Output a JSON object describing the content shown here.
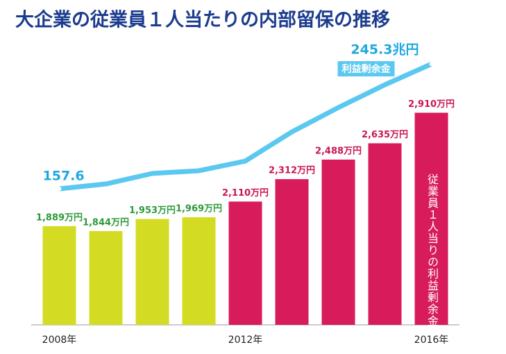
{
  "chart_data": {
    "type": "bar-line",
    "title": "大企業の従業員１人当たりの内部留保の推移",
    "categories": [
      "2008年",
      null,
      null,
      null,
      "2012年",
      null,
      null,
      null,
      "2016年"
    ],
    "ylim": [
      1000,
      3550
    ],
    "y2lim": [
      62,
      261
    ],
    "series": [
      {
        "name": "従業員１人当りの利益剰余金",
        "type": "bar",
        "colors": [
          "#d3dc22",
          "#d3dc22",
          "#d3dc22",
          "#d3dc22",
          "#d81b5b",
          "#d81b5b",
          "#d81b5b",
          "#d81b5b",
          "#d81b5b"
        ],
        "label_colors": [
          "#2e9a3a",
          "#2e9a3a",
          "#2e9a3a",
          "#2e9a3a",
          "#c8174f",
          "#c8174f",
          "#c8174f",
          "#c8174f",
          "#c8174f"
        ],
        "values": [
          1889,
          1844,
          1953,
          1969,
          2110,
          2312,
          2488,
          2635,
          2910
        ],
        "value_labels": [
          "1,889万円",
          "1,844万円",
          "1,953万円",
          "1,969万円",
          "2,110万円",
          "2,312万円",
          "2,488万円",
          "2,635万円",
          "2,910万円"
        ]
      },
      {
        "name": "利益剰余金",
        "type": "line",
        "axis": "y2",
        "color": "#5bc8f0",
        "values": [
          157.6,
          161,
          168.4,
          170.3,
          177.1,
          197.6,
          214.7,
          230.7,
          245.3
        ],
        "value_labels": [
          "157.6",
          null,
          null,
          null,
          null,
          null,
          null,
          null,
          "245.3兆円"
        ]
      }
    ]
  }
}
